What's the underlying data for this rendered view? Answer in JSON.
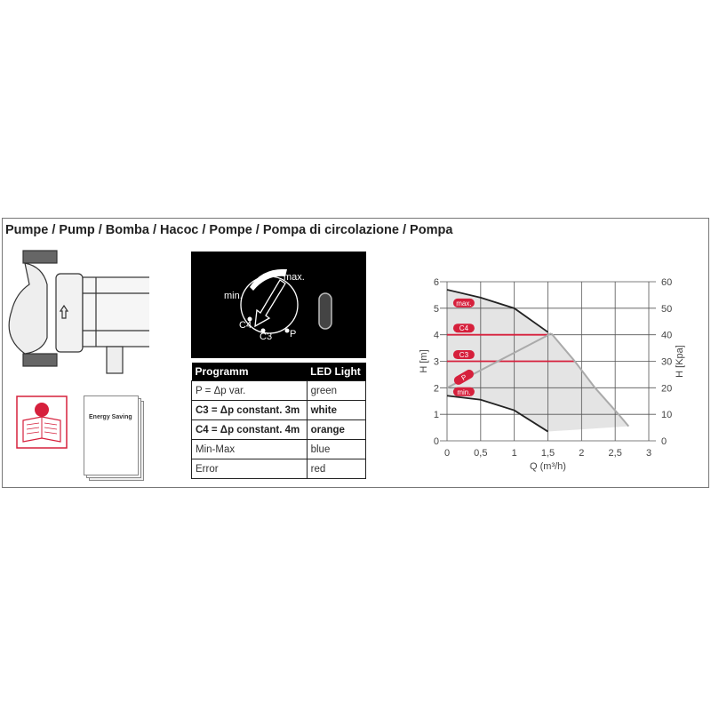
{
  "title": "Pumpe / Pump / Bomba / Насос / Pompe / Pompa di circolazione / Pompa",
  "booklet_title": "Energy Saving",
  "dial": {
    "labels": [
      "min.",
      "max.",
      "C4",
      "C3",
      "P"
    ]
  },
  "table": {
    "headers": [
      "Programm",
      "LED Light"
    ],
    "rows": [
      [
        "P = Δp var.",
        "green"
      ],
      [
        "C3 = Δp constant. 3m",
        "white"
      ],
      [
        "C4 = Δp constant. 4m",
        "orange"
      ],
      [
        "Min-Max",
        "blue"
      ],
      [
        "Error",
        "red"
      ]
    ],
    "bold_rows": [
      1,
      2
    ]
  },
  "chart_data": {
    "type": "line",
    "xlabel": "Q (m³/h)",
    "ylabel": "H [m]",
    "y2label": "H [Kpa]",
    "xlim": [
      0,
      3
    ],
    "ylim": [
      0,
      6
    ],
    "y2lim": [
      0,
      60
    ],
    "xticks": [
      "0",
      "0,5",
      "1",
      "1,5",
      "2",
      "2,5",
      "3"
    ],
    "yticks": [
      "0",
      "1",
      "2",
      "3",
      "4",
      "5",
      "6"
    ],
    "y2ticks": [
      "0",
      "10",
      "20",
      "30",
      "40",
      "50",
      "60"
    ],
    "grid": true,
    "series": [
      {
        "name": "max.",
        "x": [
          0,
          0.5,
          1,
          1.5
        ],
        "y": [
          5.7,
          5.4,
          5.0,
          4.1
        ],
        "color": "#222222"
      },
      {
        "name": "min.",
        "x": [
          0,
          0.5,
          1,
          1.5
        ],
        "y": [
          1.7,
          1.55,
          1.15,
          0.35
        ],
        "color": "#222222"
      },
      {
        "name": "C4",
        "x": [
          0,
          1.5
        ],
        "y": [
          4,
          4
        ],
        "color": "#d6203c"
      },
      {
        "name": "C3",
        "x": [
          0,
          1.9
        ],
        "y": [
          3,
          3
        ],
        "color": "#d6203c"
      },
      {
        "name": "P",
        "x": [
          0,
          1.55
        ],
        "y": [
          2.0,
          4.05
        ],
        "color": "#aaaaaa"
      },
      {
        "name": "",
        "x": [
          1.55,
          1.9,
          2.2,
          2.55,
          2.7
        ],
        "y": [
          4.05,
          3.0,
          2.0,
          1.0,
          0.55
        ],
        "color": "#aaaaaa"
      }
    ],
    "badges": [
      {
        "label": "max.",
        "y": 5.2
      },
      {
        "label": "C4",
        "y": 4.25
      },
      {
        "label": "C3",
        "y": 3.25
      },
      {
        "label": "P",
        "y": 2.4
      },
      {
        "label": "min.",
        "y": 1.85
      }
    ],
    "badge_color": "#d6203c",
    "fill_color": "#e4e4e4"
  }
}
